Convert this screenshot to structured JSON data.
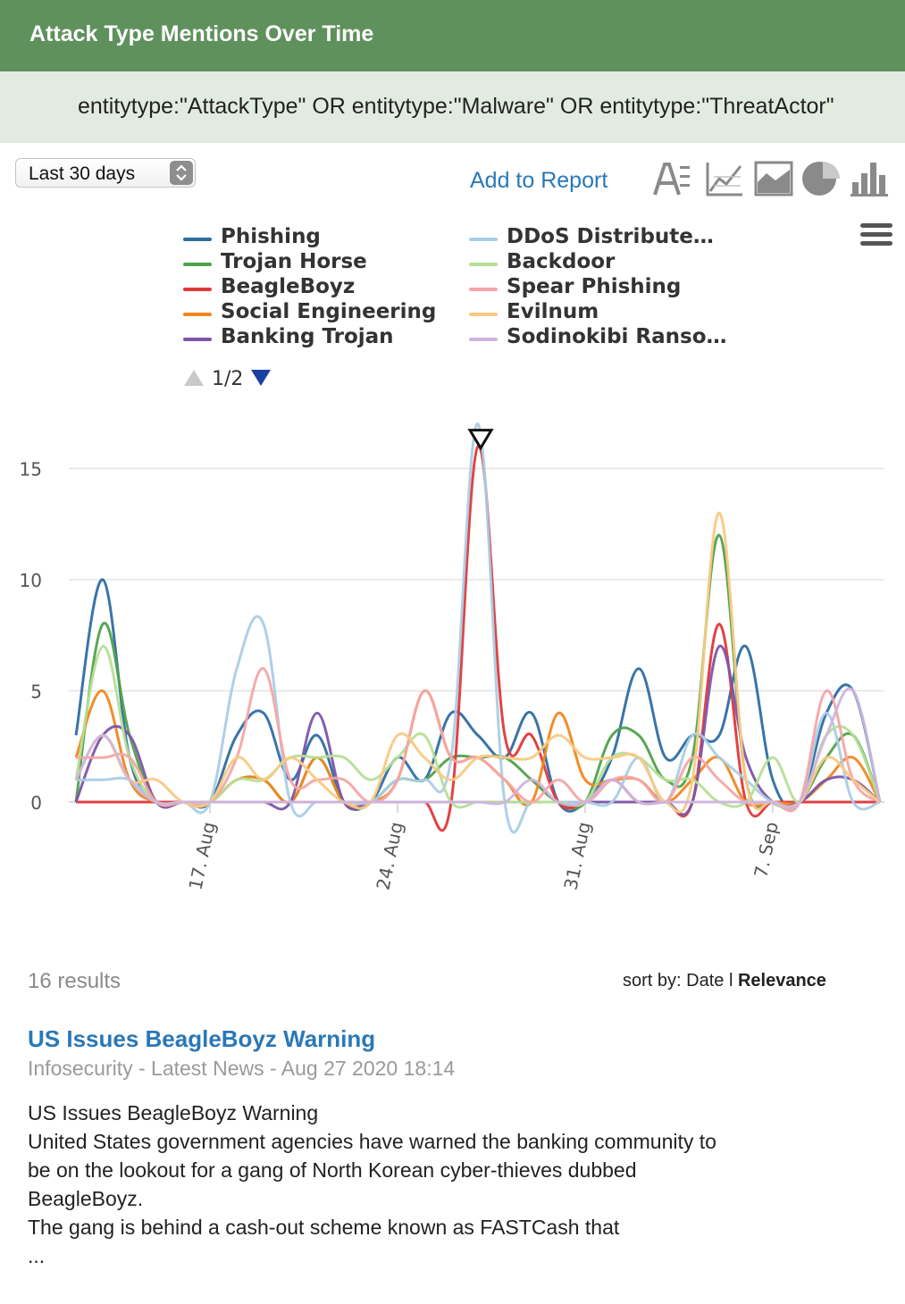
{
  "header": {
    "title": "Attack Type Mentions Over Time"
  },
  "search": {
    "query": "entitytype:\"AttackType\" OR entitytype:\"Malware\" OR entitytype:\"ThreatActor\""
  },
  "controls": {
    "date_range": "Last 30 days",
    "add_to_report": "Add to Report",
    "tools": [
      "text-view-icon",
      "line-chart-icon",
      "area-chart-icon",
      "pie-chart-icon",
      "bar-chart-icon"
    ]
  },
  "legend": {
    "page": "1/2",
    "items": [
      {
        "label": "Phishing",
        "color": "#2e6da4"
      },
      {
        "label": "Trojan Horse",
        "color": "#4fa24a"
      },
      {
        "label": "BeagleBoyz",
        "color": "#e0383b"
      },
      {
        "label": "Social Engineering",
        "color": "#f2861e"
      },
      {
        "label": "Banking Trojan",
        "color": "#7d55a8"
      },
      {
        "label": "DDoS Distribute…",
        "color": "#a9cde6"
      },
      {
        "label": "Backdoor",
        "color": "#b6df95"
      },
      {
        "label": "Spear Phishing",
        "color": "#f5a5a5"
      },
      {
        "label": "Evilnum",
        "color": "#f9c982"
      },
      {
        "label": "Sodinokibi Ranso…",
        "color": "#cfb5dd"
      }
    ]
  },
  "chart_data": {
    "type": "line",
    "x_ticks": [
      "17. Aug",
      "24. Aug",
      "31. Aug",
      "7. Sep"
    ],
    "y_ticks": [
      "0",
      "5",
      "10",
      "15"
    ],
    "ylim": [
      0,
      17
    ],
    "x": [
      "2020-08-12",
      "2020-08-13",
      "2020-08-14",
      "2020-08-15",
      "2020-08-16",
      "2020-08-17",
      "2020-08-18",
      "2020-08-19",
      "2020-08-20",
      "2020-08-21",
      "2020-08-22",
      "2020-08-23",
      "2020-08-24",
      "2020-08-25",
      "2020-08-26",
      "2020-08-27",
      "2020-08-28",
      "2020-08-29",
      "2020-08-30",
      "2020-08-31",
      "2020-09-01",
      "2020-09-02",
      "2020-09-03",
      "2020-09-04",
      "2020-09-05",
      "2020-09-06",
      "2020-09-07",
      "2020-09-08",
      "2020-09-09",
      "2020-09-10",
      "2020-09-11"
    ],
    "series": [
      {
        "name": "Phishing",
        "color": "#2e6da4",
        "values": [
          3,
          10,
          2,
          0,
          0,
          0,
          3,
          4,
          1,
          3,
          0,
          0,
          2,
          1,
          4,
          3,
          2,
          4,
          0,
          0,
          2,
          6,
          2,
          3,
          3,
          7,
          1,
          0,
          4,
          5,
          0
        ]
      },
      {
        "name": "Trojan Horse",
        "color": "#4fa24a",
        "values": [
          0,
          8,
          3,
          0,
          0,
          0,
          1,
          1,
          0,
          2,
          0,
          0,
          1,
          1,
          2,
          2,
          2,
          1,
          0,
          0,
          3,
          3,
          1,
          2,
          12,
          1,
          0,
          0,
          2,
          3,
          0
        ]
      },
      {
        "name": "BeagleBoyz",
        "color": "#e0383b",
        "values": [
          0,
          0,
          0,
          0,
          0,
          0,
          0,
          0,
          0,
          0,
          0,
          0,
          0,
          0,
          0,
          16,
          3,
          3,
          0,
          0,
          1,
          0,
          0,
          0,
          8,
          0,
          0,
          0,
          0,
          0,
          0
        ]
      },
      {
        "name": "Social Engineering",
        "color": "#f2861e",
        "values": [
          2,
          5,
          1,
          0,
          0,
          0,
          1,
          1,
          0,
          2,
          0,
          0,
          1,
          5,
          2,
          2,
          1,
          0,
          4,
          1,
          1,
          1,
          0,
          1,
          2,
          0,
          0,
          0,
          1,
          2,
          0
        ]
      },
      {
        "name": "Banking Trojan",
        "color": "#7d55a8",
        "values": [
          0,
          3,
          3,
          0,
          0,
          0,
          0,
          0,
          0,
          4,
          0,
          0,
          0,
          0,
          0,
          0,
          0,
          0,
          0,
          0,
          0,
          0,
          0,
          0,
          7,
          2,
          0,
          0,
          1,
          1,
          0
        ]
      },
      {
        "name": "DDoS Distribute…",
        "color": "#a9cde6",
        "values": [
          1,
          1,
          1,
          0,
          0,
          0,
          6,
          8,
          0,
          0,
          0,
          0,
          1,
          1,
          2,
          17,
          0,
          0,
          0,
          0,
          0,
          2,
          0,
          3,
          2,
          1,
          0,
          0,
          4,
          0,
          0
        ]
      },
      {
        "name": "Backdoor",
        "color": "#b6df95",
        "values": [
          1,
          7,
          2,
          0,
          0,
          0,
          1,
          1,
          2,
          2,
          2,
          1,
          2,
          3,
          0,
          0,
          0,
          0,
          0,
          0,
          2,
          2,
          1,
          1,
          0,
          0,
          2,
          0,
          3,
          3,
          0
        ]
      },
      {
        "name": "Spear Phishing",
        "color": "#f5a5a5",
        "values": [
          2,
          2,
          2,
          0,
          0,
          0,
          2,
          6,
          1,
          1,
          1,
          0,
          1,
          5,
          2,
          2,
          1,
          0,
          1,
          0,
          1,
          1,
          0,
          2,
          1,
          0,
          0,
          0,
          5,
          1,
          0
        ]
      },
      {
        "name": "Evilnum",
        "color": "#f9c982",
        "values": [
          1,
          3,
          1,
          1,
          0,
          0,
          2,
          1,
          2,
          1,
          0,
          0,
          3,
          2,
          1,
          2,
          2,
          2,
          3,
          2,
          2,
          2,
          0,
          1,
          13,
          1,
          0,
          0,
          2,
          1,
          0
        ]
      },
      {
        "name": "Sodinokibi Ranso…",
        "color": "#cfb5dd",
        "values": [
          1,
          3,
          1,
          0,
          0,
          0,
          0,
          0,
          0,
          0,
          0,
          0,
          0,
          0,
          0,
          0,
          0,
          1,
          0,
          0,
          1,
          0,
          0,
          0,
          0,
          0,
          0,
          0,
          3,
          5,
          0
        ]
      }
    ]
  },
  "results": {
    "count": "16 results",
    "sort_label": "sort by: Date",
    "sort_separator": "l",
    "sort_active": "Relevance"
  },
  "article": {
    "title": "US Issues BeagleBoyz Warning",
    "meta": "Infosecurity - Latest News - Aug 27 2020 18:14",
    "lines": [
      "US Issues BeagleBoyz Warning",
      "United States government agencies have warned the banking community to",
      "be on the lookout for a gang of North Korean cyber-thieves dubbed",
      "BeagleBoyz.",
      "The gang is behind a cash-out scheme known as FASTCash that",
      "..."
    ]
  }
}
